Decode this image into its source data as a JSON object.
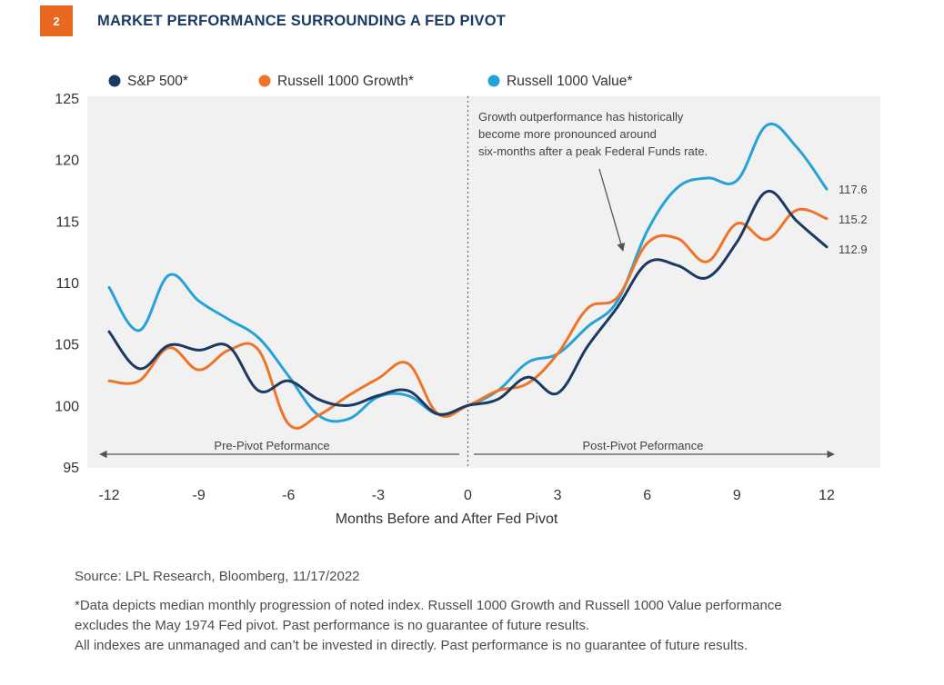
{
  "header": {
    "number": "2",
    "title": "MARKET PERFORMANCE SURROUNDING A FED PIVOT"
  },
  "legend": {
    "sp500": "S&P 500*",
    "growth": "Russell 1000 Growth*",
    "value": "Russell 1000 Value*"
  },
  "annotations": {
    "callout": [
      "Growth outperformance has historically",
      "become more pronounced around",
      "six-months after a peak Federal Funds rate."
    ],
    "pre_pivot": "Pre-Pivot Peformance",
    "post_pivot": "Post-Pivot Peformance",
    "end_sp500": "112.9",
    "end_growth": "115.2",
    "end_value": "117.6"
  },
  "footer": {
    "source": "Source: LPL Research, Bloomberg,  11/17/2022",
    "note1": "*Data depicts median monthly progression of noted index. Russell 1000 Growth and Russell 1000 Value performance",
    "note2": "excludes the May 1974 Fed pivot. Past performance is no guarantee of future results.",
    "note3": "All indexes are unmanaged and can’t be invested in directly. Past performance is no guarantee of future results."
  },
  "chart_data": {
    "type": "line",
    "title": "MARKET PERFORMANCE SURROUNDING A FED PIVOT",
    "xlabel": "Months Before and After Fed Pivot",
    "ylabel": "",
    "xlim": [
      -12,
      12
    ],
    "ylim": [
      95,
      125
    ],
    "xticks": [
      -12,
      -9,
      -6,
      -3,
      0,
      3,
      6,
      9,
      12
    ],
    "yticks": [
      95,
      100,
      105,
      110,
      115,
      120,
      125
    ],
    "grid": false,
    "legend_position": "top",
    "x": [
      -12,
      -11,
      -10,
      -9,
      -8,
      -7,
      -6,
      -5,
      -4,
      -3,
      -2,
      -1,
      0,
      1,
      2,
      3,
      4,
      5,
      6,
      7,
      8,
      9,
      10,
      11,
      12
    ],
    "series": [
      {
        "name": "S&P 500*",
        "color": "#1b3a63",
        "values": [
          106.0,
          103.0,
          104.9,
          104.5,
          104.8,
          101.2,
          102.0,
          100.5,
          100.0,
          100.8,
          101.2,
          99.3,
          100.0,
          100.5,
          102.3,
          101.0,
          104.8,
          108.0,
          111.6,
          111.4,
          110.4,
          113.3,
          117.4,
          115.0,
          112.9
        ]
      },
      {
        "name": "Russell 1000 Growth*",
        "color": "#ee7527",
        "values": [
          102.0,
          102.0,
          104.7,
          102.9,
          104.5,
          104.5,
          98.5,
          99.2,
          100.8,
          102.2,
          103.4,
          99.3,
          100.0,
          101.2,
          101.8,
          104.2,
          107.9,
          108.8,
          113.2,
          113.6,
          111.7,
          114.8,
          113.5,
          115.9,
          115.2
        ]
      },
      {
        "name": "Russell 1000 Value*",
        "color": "#25a3d8",
        "values": [
          109.6,
          106.1,
          110.6,
          108.5,
          107.0,
          105.5,
          102.4,
          99.2,
          98.9,
          100.7,
          100.8,
          99.3,
          100.0,
          101.2,
          103.5,
          104.2,
          106.4,
          108.5,
          114.2,
          117.7,
          118.5,
          118.3,
          122.8,
          121.0,
          117.6
        ]
      }
    ]
  }
}
